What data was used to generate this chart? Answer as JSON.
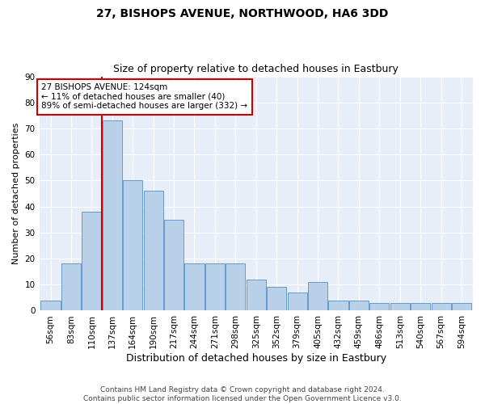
{
  "title": "27, BISHOPS AVENUE, NORTHWOOD, HA6 3DD",
  "subtitle": "Size of property relative to detached houses in Eastbury",
  "xlabel": "Distribution of detached houses by size in Eastbury",
  "ylabel": "Number of detached properties",
  "categories": [
    "56sqm",
    "83sqm",
    "110sqm",
    "137sqm",
    "164sqm",
    "190sqm",
    "217sqm",
    "244sqm",
    "271sqm",
    "298sqm",
    "325sqm",
    "352sqm",
    "379sqm",
    "405sqm",
    "432sqm",
    "459sqm",
    "486sqm",
    "513sqm",
    "540sqm",
    "567sqm",
    "594sqm"
  ],
  "values": [
    4,
    18,
    38,
    73,
    50,
    46,
    35,
    18,
    18,
    18,
    12,
    9,
    7,
    11,
    4,
    4,
    3,
    3,
    3,
    3,
    3
  ],
  "bar_color": "#b8d0e8",
  "bar_edge_color": "#6699cc",
  "vline_color": "#cc0000",
  "annotation_text": "27 BISHOPS AVENUE: 124sqm\n← 11% of detached houses are smaller (40)\n89% of semi-detached houses are larger (332) →",
  "annotation_box_color": "#ffffff",
  "annotation_box_edge": "#cc0000",
  "ylim": [
    0,
    90
  ],
  "yticks": [
    0,
    10,
    20,
    30,
    40,
    50,
    60,
    70,
    80,
    90
  ],
  "background_color": "#e8eef8",
  "footer": "Contains HM Land Registry data © Crown copyright and database right 2024.\nContains public sector information licensed under the Open Government Licence v3.0.",
  "title_fontsize": 10,
  "subtitle_fontsize": 9,
  "xlabel_fontsize": 9,
  "ylabel_fontsize": 8,
  "tick_fontsize": 7.5,
  "footer_fontsize": 6.5
}
